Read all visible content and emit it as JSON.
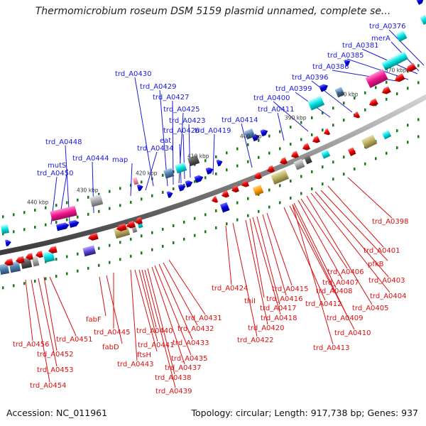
{
  "title": "Thermomicrobium roseum DSM 5159 plasmid unnamed, complete se...",
  "footer": {
    "accession": "Accession: NC_011961",
    "summary": "Topology: circular; Length: 917,738 bp; Genes: 937"
  },
  "ticks": [
    "440 kbp",
    "430 kbp",
    "420 kbp",
    "410 kbp",
    "400 kbp",
    "390 kbp",
    "380 kbp",
    "370 kbp"
  ],
  "labels_top": [
    "trd_A0376",
    "merA",
    "trd_A0381",
    "trd_A0385",
    "trd_A0386",
    "trd_A0396",
    "trd_A0399",
    "trd_A0400",
    "trd_A0411",
    "trd_A0414",
    "trd_A0419",
    "trd_A0423",
    "trd_A0425",
    "trd_A0426",
    "trd_A0427",
    "eat",
    "trd_A0429",
    "trd_A0430",
    "trd_A0434",
    "map",
    "trd_A0444",
    "trd_A0448",
    "mutS",
    "trd_A0450"
  ],
  "labels_bottom": [
    "trd_A0398",
    "trd_A0401",
    "pfkB",
    "trd_A0403",
    "trd_A0404",
    "trd_A0405",
    "trd_A0406",
    "trd_A0407",
    "trd_A0408",
    "trd_A0409",
    "trd_A0410",
    "trd_A0412",
    "trd_A0413",
    "trd_A0415",
    "trd_A0416",
    "trd_A0417",
    "thiI",
    "trd_A0418",
    "trd_A0420",
    "trd_A0422",
    "trd_A0424",
    "trd_A0431",
    "trd_A0432",
    "trd_A0433",
    "trd_A0435",
    "trd_A0437",
    "trd_A0438",
    "trd_A0439",
    "trd_A0440",
    "trd_A0441",
    "ftsH",
    "trd_A0443",
    "trd_A0445",
    "fabF",
    "fabD",
    "trd_A0451",
    "trd_A0452",
    "trd_A0453",
    "trd_A0454",
    "trd_A0456"
  ],
  "colors": {
    "forward": "#1a1ad8",
    "reverse": "#d81010",
    "backbone": "#808080",
    "dots": "#1a7a1a"
  }
}
